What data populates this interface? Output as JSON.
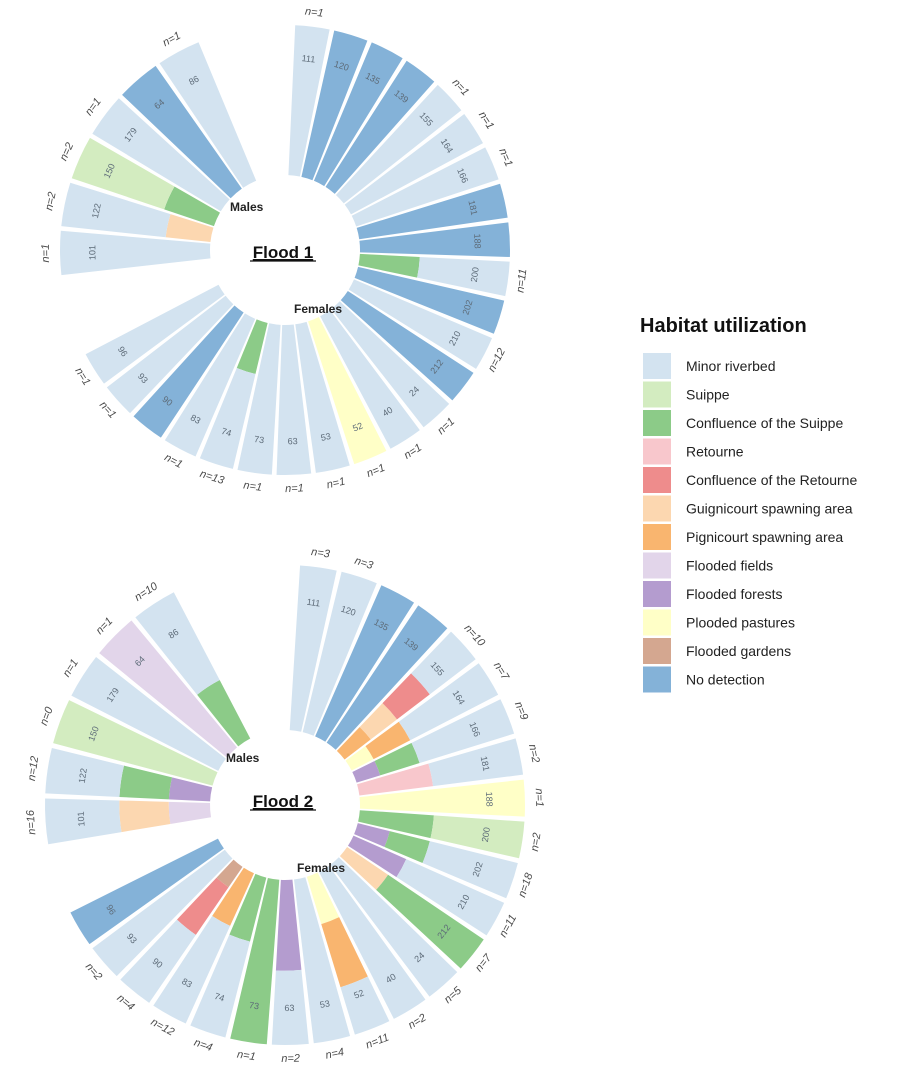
{
  "legend": {
    "title": "Habitat utilization",
    "items": [
      {
        "label": "Minor riverbed",
        "color": "#d3e3f0"
      },
      {
        "label": "Suippe",
        "color": "#d3ecc0"
      },
      {
        "label": "Confluence of the Suippe",
        "color": "#8ccb88"
      },
      {
        "label": "Retourne",
        "color": "#f8c7cc"
      },
      {
        "label": "Confluence of the Retourne",
        "color": "#ee8c8c"
      },
      {
        "label": "Guignicourt spawning area",
        "color": "#fcd7b0"
      },
      {
        "label": "Pignicourt spawning area",
        "color": "#f9b56f"
      },
      {
        "label": "Flooded fields",
        "color": "#e2d5ea"
      },
      {
        "label": "Flooded forests",
        "color": "#b49ccf"
      },
      {
        "label": "Plooded pastures",
        "color": "#ffffc7"
      },
      {
        "label": "Flooded gardens",
        "color": "#d4a790"
      },
      {
        "label": "No detection",
        "color": "#84b2d8"
      }
    ]
  },
  "chart_data": [
    {
      "type": "radial-bar",
      "title": "Flood 1",
      "group_labels": {
        "males": "Males",
        "females": "Females"
      },
      "males": [
        {
          "id": "101",
          "n": "n=1",
          "stack": [
            [
              "Minor riverbed",
              1
            ]
          ]
        },
        {
          "id": "122",
          "n": "n=2",
          "stack": [
            [
              "Guignicourt spawning area",
              0.3
            ],
            [
              "Minor riverbed",
              0.7
            ]
          ]
        },
        {
          "id": "150",
          "n": "n=2",
          "stack": [
            [
              "Confluence of the Suippe",
              0.35
            ],
            [
              "Suippe",
              0.65
            ]
          ]
        },
        {
          "id": "179",
          "n": "n=1",
          "stack": [
            [
              "Minor riverbed",
              1
            ]
          ]
        },
        {
          "id": "64",
          "n": "",
          "stack": [
            [
              "No detection",
              1
            ]
          ]
        },
        {
          "id": "86",
          "n": "n=1",
          "stack": [
            [
              "Minor riverbed",
              1
            ]
          ]
        }
      ],
      "females": [
        {
          "id": "111",
          "n": "n=1",
          "stack": [
            [
              "Minor riverbed",
              1
            ]
          ]
        },
        {
          "id": "120",
          "n": "",
          "stack": [
            [
              "No detection",
              1
            ]
          ]
        },
        {
          "id": "135",
          "n": "",
          "stack": [
            [
              "No detection",
              1
            ]
          ]
        },
        {
          "id": "139",
          "n": "",
          "stack": [
            [
              "No detection",
              1
            ]
          ]
        },
        {
          "id": "155",
          "n": "n=1",
          "stack": [
            [
              "Minor riverbed",
              1
            ]
          ]
        },
        {
          "id": "164",
          "n": "n=1",
          "stack": [
            [
              "Minor riverbed",
              1
            ]
          ]
        },
        {
          "id": "166",
          "n": "n=1",
          "stack": [
            [
              "Minor riverbed",
              1
            ]
          ]
        },
        {
          "id": "181",
          "n": "",
          "stack": [
            [
              "No detection",
              1
            ]
          ]
        },
        {
          "id": "188",
          "n": "",
          "stack": [
            [
              "No detection",
              1
            ]
          ]
        },
        {
          "id": "200",
          "n": "n=11",
          "stack": [
            [
              "Confluence of the Suippe",
              0.4
            ],
            [
              "Minor riverbed",
              0.6
            ]
          ]
        },
        {
          "id": "202",
          "n": "",
          "stack": [
            [
              "No detection",
              1
            ]
          ]
        },
        {
          "id": "210",
          "n": "n=12",
          "stack": [
            [
              "Minor riverbed",
              1
            ]
          ]
        },
        {
          "id": "212",
          "n": "",
          "stack": [
            [
              "No detection",
              1
            ]
          ]
        },
        {
          "id": "24",
          "n": "n=1",
          "stack": [
            [
              "Minor riverbed",
              1
            ]
          ]
        },
        {
          "id": "40",
          "n": "n=1",
          "stack": [
            [
              "Minor riverbed",
              1
            ]
          ]
        },
        {
          "id": "52",
          "n": "n=1",
          "stack": [
            [
              "Plooded pastures",
              1
            ]
          ]
        },
        {
          "id": "53",
          "n": "n=1",
          "stack": [
            [
              "Minor riverbed",
              1
            ]
          ]
        },
        {
          "id": "63",
          "n": "n=1",
          "stack": [
            [
              "Minor riverbed",
              1
            ]
          ]
        },
        {
          "id": "73",
          "n": "n=1",
          "stack": [
            [
              "Minor riverbed",
              1
            ]
          ]
        },
        {
          "id": "74",
          "n": "n=13",
          "stack": [
            [
              "Confluence of the Suippe",
              0.35
            ],
            [
              "Minor riverbed",
              0.65
            ]
          ]
        },
        {
          "id": "83",
          "n": "n=1",
          "stack": [
            [
              "Minor riverbed",
              1
            ]
          ]
        },
        {
          "id": "90",
          "n": "",
          "stack": [
            [
              "No detection",
              1
            ]
          ]
        },
        {
          "id": "93",
          "n": "n=1",
          "stack": [
            [
              "Minor riverbed",
              1
            ]
          ]
        },
        {
          "id": "96",
          "n": "n=1",
          "stack": [
            [
              "Minor riverbed",
              1
            ]
          ]
        }
      ]
    },
    {
      "type": "radial-bar",
      "title": "Flood 2",
      "group_labels": {
        "males": "Males",
        "females": "Females"
      },
      "males": [
        {
          "id": "101",
          "n": "n=16",
          "stack": [
            [
              "Flooded fields",
              0.25
            ],
            [
              "Guignicourt spawning area",
              0.3
            ],
            [
              "Minor riverbed",
              0.45
            ]
          ]
        },
        {
          "id": "122",
          "n": "n=12",
          "stack": [
            [
              "Flooded forests",
              0.25
            ],
            [
              "Confluence of the Suippe",
              0.3
            ],
            [
              "Minor riverbed",
              0.45
            ]
          ]
        },
        {
          "id": "150",
          "n": "n=0",
          "stack": [
            [
              "Suippe",
              1
            ]
          ]
        },
        {
          "id": "179",
          "n": "n=1",
          "stack": [
            [
              "Minor riverbed",
              1
            ]
          ]
        },
        {
          "id": "64",
          "n": "n=1",
          "stack": [
            [
              "Flooded fields",
              1
            ]
          ]
        },
        {
          "id": "86",
          "n": "n=10",
          "stack": [
            [
              "Confluence of the Suippe",
              0.4
            ],
            [
              "Minor riverbed",
              0.6
            ]
          ]
        }
      ],
      "females": [
        {
          "id": "111",
          "n": "n=3",
          "stack": [
            [
              "Minor riverbed",
              1
            ]
          ]
        },
        {
          "id": "120",
          "n": "n=3",
          "stack": [
            [
              "Minor riverbed",
              1
            ]
          ]
        },
        {
          "id": "135",
          "n": "",
          "stack": [
            [
              "No detection",
              1
            ]
          ]
        },
        {
          "id": "139",
          "n": "",
          "stack": [
            [
              "No detection",
              1
            ]
          ]
        },
        {
          "id": "155",
          "n": "n=10",
          "stack": [
            [
              "Pignicourt spawning area",
              0.2
            ],
            [
              "Guignicourt spawning area",
              0.2
            ],
            [
              "Confluence of the Retourne",
              0.25
            ],
            [
              "Minor riverbed",
              0.35
            ]
          ]
        },
        {
          "id": "164",
          "n": "n=7",
          "stack": [
            [
              "Plooded pastures",
              0.15
            ],
            [
              "Pignicourt spawning area",
              0.25
            ],
            [
              "Minor riverbed",
              0.6
            ]
          ]
        },
        {
          "id": "166",
          "n": "n=9",
          "stack": [
            [
              "Flooded forests",
              0.15
            ],
            [
              "Confluence of the Suippe",
              0.25
            ],
            [
              "Minor riverbed",
              0.6
            ]
          ]
        },
        {
          "id": "181",
          "n": "n=2",
          "stack": [
            [
              "Retourne",
              0.45
            ],
            [
              "Minor riverbed",
              0.55
            ]
          ]
        },
        {
          "id": "188",
          "n": "n=1",
          "stack": [
            [
              "Plooded pastures",
              1
            ]
          ]
        },
        {
          "id": "200",
          "n": "n=2",
          "stack": [
            [
              "Confluence of the Suippe",
              0.45
            ],
            [
              "Suippe",
              0.55
            ]
          ]
        },
        {
          "id": "202",
          "n": "n=18",
          "stack": [
            [
              "Flooded forests",
              0.2
            ],
            [
              "Confluence of the Suippe",
              0.25
            ],
            [
              "Minor riverbed",
              0.55
            ]
          ]
        },
        {
          "id": "210",
          "n": "n=11",
          "stack": [
            [
              "Flooded forests",
              0.35
            ],
            [
              "Minor riverbed",
              0.65
            ]
          ]
        },
        {
          "id": "212",
          "n": "n=7",
          "stack": [
            [
              "Guignicourt spawning area",
              0.3
            ],
            [
              "Confluence of the Suippe",
              0.7
            ]
          ]
        },
        {
          "id": "24",
          "n": "n=5",
          "stack": [
            [
              "Minor riverbed",
              1
            ]
          ]
        },
        {
          "id": "40",
          "n": "n=2",
          "stack": [
            [
              "Minor riverbed",
              1
            ]
          ]
        },
        {
          "id": "52",
          "n": "n=11",
          "stack": [
            [
              "Plooded pastures",
              0.3
            ],
            [
              "Pignicourt spawning area",
              0.4
            ],
            [
              "Minor riverbed",
              0.3
            ]
          ]
        },
        {
          "id": "53",
          "n": "n=4",
          "stack": [
            [
              "Minor riverbed",
              1
            ]
          ]
        },
        {
          "id": "63",
          "n": "n=2",
          "stack": [
            [
              "Flooded forests",
              0.55
            ],
            [
              "Minor riverbed",
              0.45
            ]
          ]
        },
        {
          "id": "73",
          "n": "n=1",
          "stack": [
            [
              "Confluence of the Suippe",
              1
            ]
          ]
        },
        {
          "id": "74",
          "n": "n=4",
          "stack": [
            [
              "Confluence of the Suippe",
              0.4
            ],
            [
              "Minor riverbed",
              0.6
            ]
          ]
        },
        {
          "id": "83",
          "n": "n=12",
          "stack": [
            [
              "Pignicourt spawning area",
              0.35
            ],
            [
              "Minor riverbed",
              0.65
            ]
          ]
        },
        {
          "id": "90",
          "n": "n=4",
          "stack": [
            [
              "Flooded gardens",
              0.15
            ],
            [
              "Confluence of the Retourne",
              0.35
            ],
            [
              "Minor riverbed",
              0.5
            ]
          ]
        },
        {
          "id": "93",
          "n": "n=2",
          "stack": [
            [
              "Minor riverbed",
              1
            ]
          ]
        },
        {
          "id": "96",
          "n": "",
          "stack": [
            [
              "No detection",
              1
            ]
          ]
        }
      ]
    }
  ]
}
